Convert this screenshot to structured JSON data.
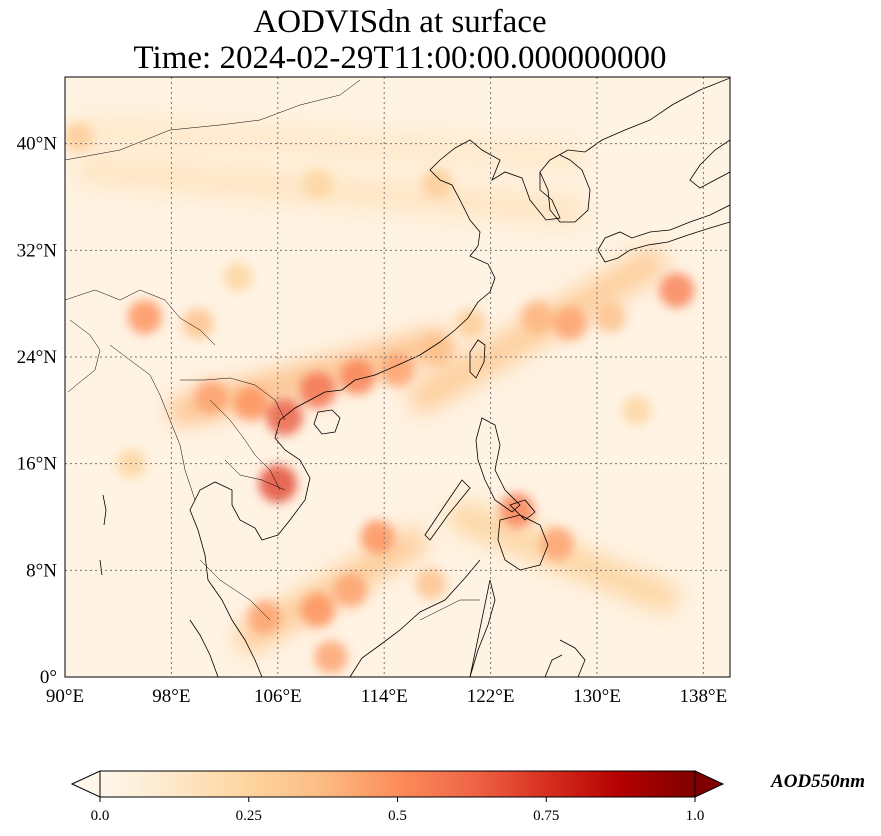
{
  "title": {
    "line1": "AODVISdn at surface",
    "line2": "Time: 2024-02-29T11:00:00.000000000"
  },
  "map": {
    "lon_range": [
      90,
      140
    ],
    "lat_range": [
      0,
      45
    ],
    "lon_ticks": [
      {
        "value": 90,
        "label": "90°E"
      },
      {
        "value": 98,
        "label": "98°E"
      },
      {
        "value": 106,
        "label": "106°E"
      },
      {
        "value": 114,
        "label": "114°E"
      },
      {
        "value": 122,
        "label": "122°E"
      },
      {
        "value": 130,
        "label": "130°E"
      },
      {
        "value": 138,
        "label": "138°E"
      }
    ],
    "lat_ticks": [
      {
        "value": 0,
        "label": "0°"
      },
      {
        "value": 8,
        "label": "8°N"
      },
      {
        "value": 16,
        "label": "16°N"
      },
      {
        "value": 24,
        "label": "24°N"
      },
      {
        "value": 32,
        "label": "32°N"
      },
      {
        "value": 40,
        "label": "40°N"
      }
    ],
    "gridlines": true,
    "colormap": "OrRd",
    "color_stops": [
      "#fff7ec",
      "#fee8c8",
      "#fdd49e",
      "#fdbb84",
      "#fc8d59",
      "#ef6548",
      "#d7301f",
      "#b30000",
      "#7f0000"
    ]
  },
  "colorbar": {
    "label": "AOD550nm",
    "range": [
      0.0,
      1.0
    ],
    "extend": "both",
    "ticks": [
      {
        "value": 0.0,
        "label": "0.0"
      },
      {
        "value": 0.25,
        "label": "0.25"
      },
      {
        "value": 0.5,
        "label": "0.5"
      },
      {
        "value": 0.75,
        "label": "0.75"
      },
      {
        "value": 1.0,
        "label": "1.0"
      }
    ]
  },
  "aod_hotspots": [
    {
      "lon": 101,
      "lat": 21,
      "aod": 0.45
    },
    {
      "lon": 104,
      "lat": 20.5,
      "aod": 0.5
    },
    {
      "lon": 106.5,
      "lat": 19.5,
      "aod": 0.65
    },
    {
      "lon": 109,
      "lat": 21.5,
      "aod": 0.6
    },
    {
      "lon": 112,
      "lat": 22.5,
      "aod": 0.55
    },
    {
      "lon": 115,
      "lat": 23,
      "aod": 0.45
    },
    {
      "lon": 118,
      "lat": 24.5,
      "aod": 0.35
    },
    {
      "lon": 120.5,
      "lat": 26.5,
      "aod": 0.3
    },
    {
      "lon": 96,
      "lat": 27,
      "aod": 0.5
    },
    {
      "lon": 100,
      "lat": 26.5,
      "aod": 0.35
    },
    {
      "lon": 106,
      "lat": 14.5,
      "aod": 0.7
    },
    {
      "lon": 105,
      "lat": 4.5,
      "aod": 0.45
    },
    {
      "lon": 109,
      "lat": 5,
      "aod": 0.5
    },
    {
      "lon": 110,
      "lat": 1.5,
      "aod": 0.45
    },
    {
      "lon": 111.5,
      "lat": 6.5,
      "aod": 0.45
    },
    {
      "lon": 113.5,
      "lat": 10.5,
      "aod": 0.5
    },
    {
      "lon": 117.5,
      "lat": 7,
      "aod": 0.35
    },
    {
      "lon": 124,
      "lat": 12.5,
      "aod": 0.55
    },
    {
      "lon": 127,
      "lat": 10,
      "aod": 0.45
    },
    {
      "lon": 128,
      "lat": 26.5,
      "aod": 0.45
    },
    {
      "lon": 125.5,
      "lat": 27,
      "aod": 0.4
    },
    {
      "lon": 131,
      "lat": 27,
      "aod": 0.35
    },
    {
      "lon": 136,
      "lat": 29,
      "aod": 0.55
    },
    {
      "lon": 118,
      "lat": 37,
      "aod": 0.3
    },
    {
      "lon": 109,
      "lat": 37,
      "aod": 0.25
    },
    {
      "lon": 91,
      "lat": 40.5,
      "aod": 0.3
    },
    {
      "lon": 103,
      "lat": 30,
      "aod": 0.25
    },
    {
      "lon": 95,
      "lat": 16,
      "aod": 0.25
    },
    {
      "lon": 133,
      "lat": 20,
      "aod": 0.25
    }
  ],
  "aod_bands": [
    {
      "from": [
        117,
        21
      ],
      "to": [
        134,
        31
      ],
      "aod": 0.3
    },
    {
      "from": [
        99,
        20
      ],
      "to": [
        118,
        25
      ],
      "aod": 0.35
    },
    {
      "from": [
        104,
        3
      ],
      "to": [
        116,
        10
      ],
      "aod": 0.3
    },
    {
      "from": [
        120,
        12
      ],
      "to": [
        135,
        6
      ],
      "aod": 0.25
    },
    {
      "from": [
        92,
        38
      ],
      "to": [
        128,
        35
      ],
      "aod": 0.15
    },
    {
      "from": [
        92,
        41
      ],
      "to": [
        128,
        39
      ],
      "aod": 0.12
    }
  ]
}
